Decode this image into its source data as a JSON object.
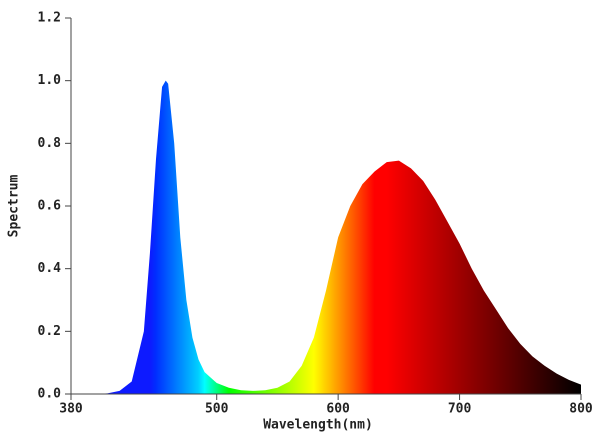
{
  "chart_data": {
    "type": "area",
    "xlabel": "Wavelength(nm)",
    "ylabel": "Spectrum",
    "x": [
      380,
      400,
      410,
      420,
      430,
      440,
      445,
      450,
      455,
      458,
      460,
      465,
      470,
      475,
      480,
      485,
      490,
      500,
      510,
      520,
      530,
      540,
      550,
      560,
      570,
      580,
      590,
      600,
      610,
      620,
      630,
      640,
      650,
      660,
      670,
      680,
      690,
      700,
      710,
      720,
      730,
      740,
      750,
      760,
      770,
      780,
      790,
      800
    ],
    "y": [
      0,
      0,
      0.002,
      0.01,
      0.04,
      0.2,
      0.45,
      0.75,
      0.98,
      1.0,
      0.99,
      0.8,
      0.5,
      0.3,
      0.18,
      0.11,
      0.07,
      0.035,
      0.02,
      0.012,
      0.01,
      0.012,
      0.02,
      0.04,
      0.09,
      0.18,
      0.33,
      0.5,
      0.6,
      0.67,
      0.71,
      0.74,
      0.745,
      0.72,
      0.68,
      0.62,
      0.55,
      0.48,
      0.4,
      0.33,
      0.27,
      0.21,
      0.16,
      0.12,
      0.09,
      0.065,
      0.045,
      0.03
    ],
    "xlim": [
      380,
      800
    ],
    "ylim": [
      0,
      1.2
    ],
    "xticks": [
      380,
      500,
      600,
      700,
      800
    ],
    "yticks": [
      {
        "value": 0,
        "label": "0.0"
      },
      0.2,
      0.4,
      0.6,
      0.8,
      {
        "value": 1,
        "label": "1.0"
      },
      1.2
    ]
  }
}
